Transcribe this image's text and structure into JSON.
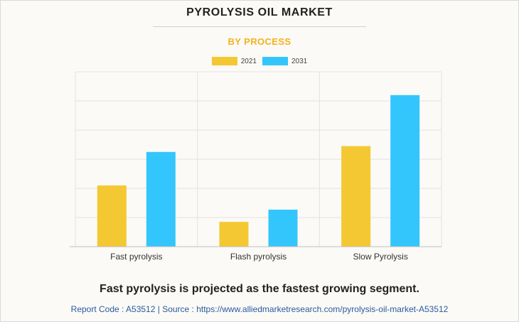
{
  "title": "PYROLYSIS OIL MARKET",
  "subtitle": "BY PROCESS",
  "headline": "Fast pyrolysis is projected as the fastest growing segment.",
  "footer": "Report Code : A53512  |  Source : https://www.alliedmarketresearch.com/pyrolysis-oil-market-A53512",
  "colors": {
    "s2021": "#f4c832",
    "s2031": "#33c6fc",
    "grid": "#e3e3e3",
    "axis": "#bdbdbd",
    "title": "#222222",
    "subtitle": "#f3b21d",
    "footer": "#2a5a9e"
  },
  "chart_data": {
    "type": "bar",
    "title": "PYROLYSIS OIL MARKET",
    "subtitle": "BY PROCESS",
    "categories": [
      "Fast pyrolysis",
      "Flash pyrolysis",
      "Slow Pyrolysis"
    ],
    "series": [
      {
        "name": "2021",
        "values": [
          2.1,
          0.85,
          3.45
        ]
      },
      {
        "name": "2031",
        "values": [
          3.25,
          1.27,
          5.2
        ]
      }
    ],
    "ylim": [
      0,
      6
    ],
    "grid": true,
    "legend": "top-center",
    "y_tick_labels_visible": false
  }
}
